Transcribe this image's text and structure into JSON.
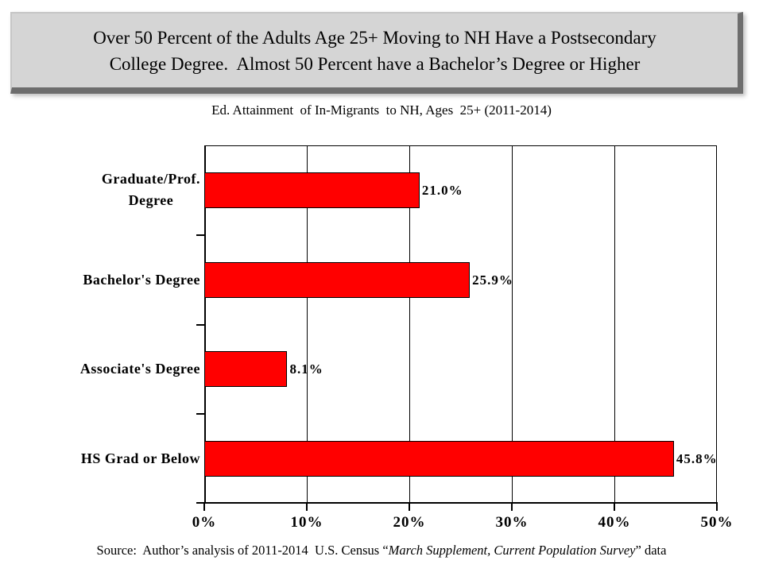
{
  "slide": {
    "title_line1": "Over 50 Percent of the Adults Age 25+ Moving to NH Have a Postsecondary",
    "title_line2": "College Degree.  Almost 50 Percent have a Bachelor’s Degree or Higher"
  },
  "chart_data": {
    "type": "bar",
    "orientation": "horizontal",
    "title": "Ed. Attainment  of In-Migrants  to NH, Ages  25+ (2011-2014)",
    "categories": [
      "Graduate/Prof.\nDegree",
      "Bachelor's Degree",
      "Associate's Degree",
      "HS Grad or Below"
    ],
    "values": [
      21.0,
      25.9,
      8.1,
      45.8
    ],
    "data_labels": [
      "21.0%",
      "25.9%",
      "8.1%",
      "45.8%"
    ],
    "xlim": [
      0,
      50
    ],
    "x_tick_values": [
      0,
      10,
      20,
      30,
      40,
      50
    ],
    "x_tick_labels": [
      "0%",
      "10%",
      "20%",
      "30%",
      "40%",
      "50%"
    ],
    "grid": true,
    "legend": "none",
    "bar_color": "#ff0000",
    "bar_border_color": "#000000"
  },
  "source": {
    "prefix": "Source:  Author’s analysis of 2011-2014  U.S. Census “",
    "italic": "March Supplement, Current Population Survey",
    "suffix": "” data"
  },
  "colors": {
    "title_box_bg": "#d5d5d5",
    "title_box_shadow": "#6d6d6d",
    "background": "#ffffff",
    "text": "#000000"
  }
}
